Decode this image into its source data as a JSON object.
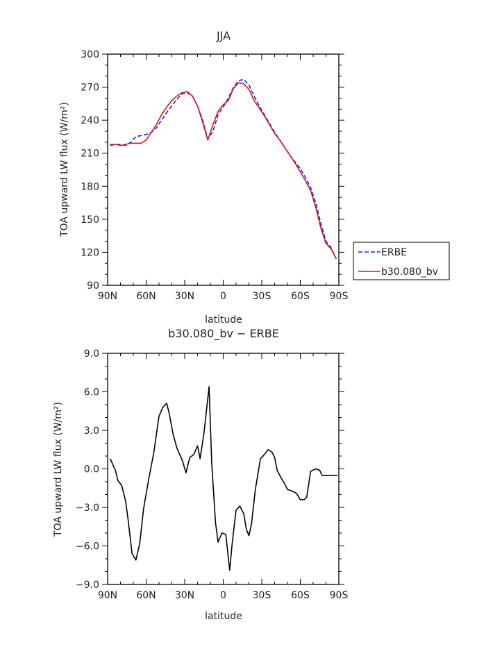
{
  "chart_data": [
    {
      "type": "line",
      "title": "JJA",
      "xlabel": "latitude",
      "ylabel": "TOA upward LW flux (W/m²)",
      "xlim": [
        90,
        -90
      ],
      "ylim": [
        90,
        300
      ],
      "x_ticks": [
        90,
        60,
        30,
        0,
        -30,
        -60,
        -90
      ],
      "x_tick_labels": [
        "90N",
        "60N",
        "30N",
        "0",
        "30S",
        "60S",
        "90S"
      ],
      "y_ticks": [
        90,
        120,
        150,
        180,
        210,
        240,
        270,
        300
      ],
      "y_tick_labels": [
        "90",
        "120",
        "150",
        "180",
        "210",
        "240",
        "270",
        "300"
      ],
      "legend_position": "outside-right",
      "series": [
        {
          "name": "ERBE",
          "color": "#1f1fe0",
          "dash": "dashed",
          "x": [
            88,
            84,
            80,
            76,
            72,
            68,
            64,
            60,
            56,
            52,
            48,
            44,
            40,
            36,
            32,
            28,
            24,
            20,
            16,
            12,
            8,
            4,
            0,
            -4,
            -8,
            -12,
            -16,
            -20,
            -24,
            -28,
            -32,
            -36,
            -40,
            -44,
            -48,
            -52,
            -56,
            -60,
            -64,
            -68,
            -72,
            -76,
            -80,
            -84,
            -88
          ],
          "values": [
            217,
            218,
            218,
            217,
            220,
            225,
            226,
            227,
            229,
            233,
            240,
            247,
            253,
            259,
            264,
            265,
            262,
            253,
            240,
            223,
            230,
            245,
            252,
            260,
            270,
            276,
            277,
            272,
            262,
            253,
            245,
            237,
            229,
            222,
            215,
            208,
            202,
            196,
            188,
            179,
            165,
            146,
            130,
            124,
            114
          ]
        },
        {
          "name": "b30.080_bv",
          "color": "#e01010",
          "dash": "solid",
          "x": [
            88,
            84,
            80,
            76,
            72,
            68,
            64,
            60,
            56,
            52,
            48,
            44,
            40,
            36,
            32,
            28,
            24,
            20,
            16,
            12,
            8,
            4,
            0,
            -4,
            -8,
            -12,
            -16,
            -20,
            -24,
            -28,
            -32,
            -36,
            -40,
            -44,
            -48,
            -52,
            -56,
            -60,
            -64,
            -68,
            -72,
            -76,
            -80,
            -84,
            -88
          ],
          "values": [
            218,
            218,
            217,
            218,
            219,
            219,
            219,
            222,
            229,
            236,
            245,
            252,
            258,
            262,
            265,
            266,
            262,
            253,
            238,
            222,
            236,
            248,
            254,
            258,
            269,
            274,
            273,
            268,
            258,
            251,
            244,
            236,
            228,
            222,
            215,
            208,
            201,
            193,
            185,
            176,
            161,
            142,
            128,
            123,
            114
          ]
        }
      ]
    },
    {
      "type": "line",
      "title": "b30.080_bv − ERBE",
      "xlabel": "latitude",
      "ylabel": "TOA upward LW flux (W/m²)",
      "xlim": [
        90,
        -90
      ],
      "ylim": [
        -9,
        9
      ],
      "x_ticks": [
        90,
        60,
        30,
        0,
        -30,
        -60,
        -90
      ],
      "x_tick_labels": [
        "90N",
        "60N",
        "30N",
        "0",
        "30S",
        "60S",
        "90S"
      ],
      "y_ticks": [
        -9,
        -6,
        -3,
        0,
        3,
        6,
        9
      ],
      "y_tick_labels": [
        "−9.0",
        "−6.0",
        "−3.0",
        "0.0",
        "3.0",
        "6.0",
        "9.0"
      ],
      "series": [
        {
          "color": "#000000",
          "x": [
            88,
            84,
            82,
            79,
            76,
            74,
            71,
            68,
            65,
            62,
            58,
            54,
            50,
            47,
            44,
            42,
            39,
            36,
            32,
            29,
            26,
            23,
            20,
            18,
            15,
            11,
            9,
            6,
            4,
            1,
            -2,
            -5,
            -7,
            -10,
            -13,
            -16,
            -18,
            -20,
            -22,
            -25,
            -29,
            -31,
            -35,
            -38,
            -40,
            -42,
            -45,
            -48,
            -50,
            -53,
            -57,
            -60,
            -63,
            -65,
            -68,
            -72,
            -75,
            -77,
            -80,
            -83,
            -86,
            -89
          ],
          "values": [
            0.8,
            -0.1,
            -0.9,
            -1.3,
            -2.5,
            -4.0,
            -6.6,
            -7.1,
            -5.8,
            -3.1,
            -0.8,
            1.3,
            4.1,
            4.8,
            5.1,
            4.3,
            2.7,
            1.6,
            0.7,
            -0.3,
            0.9,
            1.1,
            1.8,
            0.8,
            2.8,
            6.4,
            0.5,
            -4.2,
            -5.7,
            -5.0,
            -5.1,
            -7.9,
            -5.8,
            -3.2,
            -2.9,
            -3.5,
            -4.7,
            -5.2,
            -4.3,
            -1.6,
            0.8,
            1.0,
            1.5,
            1.3,
            0.9,
            -0.1,
            -0.7,
            -1.2,
            -1.6,
            -1.7,
            -1.9,
            -2.4,
            -2.4,
            -2.2,
            -0.2,
            0.0,
            -0.1,
            -0.5,
            -0.5,
            -0.5,
            -0.5,
            -0.5
          ]
        }
      ]
    }
  ]
}
